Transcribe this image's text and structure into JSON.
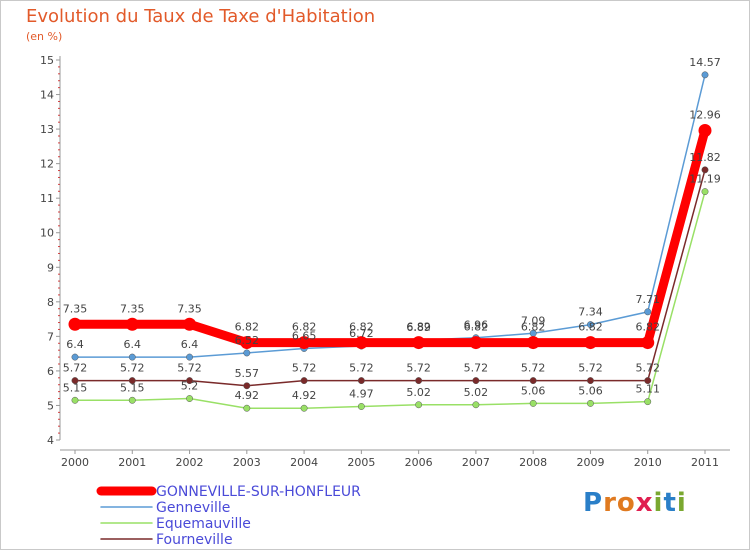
{
  "title": "Evolution du Taux de Taxe d'Habitation",
  "unit": "(en %)",
  "logo": [
    "P",
    "r",
    "o",
    "x",
    "i",
    "t",
    "i"
  ],
  "logo_colors": [
    "#2a7fc8",
    "#e07a20",
    "#e07a20",
    "#e01f50",
    "#7aa830",
    "#2a7fc8",
    "#7aa830"
  ],
  "chart_data": {
    "type": "line",
    "title": "Evolution du Taux de Taxe d'Habitation",
    "ylabel": "(en %)",
    "xlabel": "",
    "categories": [
      "2000",
      "2001",
      "2002",
      "2003",
      "2004",
      "2005",
      "2006",
      "2007",
      "2008",
      "2009",
      "2010",
      "2011"
    ],
    "ylim": [
      4,
      15
    ],
    "yticks": [
      4,
      5,
      6,
      7,
      8,
      9,
      10,
      11,
      12,
      13,
      14,
      15
    ],
    "series": [
      {
        "name": "GONNEVILLE-SUR-HONFLEUR",
        "color": "#ff0000",
        "values": [
          7.35,
          7.35,
          7.35,
          6.82,
          6.82,
          6.82,
          6.82,
          6.82,
          6.82,
          6.82,
          6.82,
          12.96
        ],
        "labels": [
          "7.35",
          "7.35",
          "7.35",
          "6.82",
          "6.82",
          "6.82",
          "6.82",
          "6.82",
          "6.82",
          "6.82",
          "6.82",
          "12.96"
        ]
      },
      {
        "name": "Genneville",
        "color": "#5b9bd5",
        "values": [
          6.4,
          6.4,
          6.4,
          6.52,
          6.65,
          6.72,
          6.89,
          6.96,
          7.09,
          7.34,
          7.71,
          14.57
        ],
        "labels": [
          "6.4",
          "6.4",
          "6.4",
          "6.52",
          "6.65",
          "6.72",
          "6.89",
          "6.96",
          "7.09",
          "7.34",
          "7.71",
          "14.57"
        ]
      },
      {
        "name": "Equemauville",
        "color": "#99e066",
        "values": [
          5.15,
          5.15,
          5.2,
          4.92,
          4.92,
          4.97,
          5.02,
          5.02,
          5.06,
          5.06,
          5.11,
          11.19
        ],
        "labels": [
          "5.15",
          "5.15",
          "5.2",
          "4.92",
          "4.92",
          "4.97",
          "5.02",
          "5.02",
          "5.06",
          "5.06",
          "5.11",
          "11.19"
        ]
      },
      {
        "name": "Fourneville",
        "color": "#7a2a2a",
        "values": [
          5.72,
          5.72,
          5.72,
          5.57,
          5.72,
          5.72,
          5.72,
          5.72,
          5.72,
          5.72,
          5.72,
          11.82
        ],
        "labels": [
          "5.72",
          "5.72",
          "5.72",
          "5.57",
          "5.72",
          "5.72",
          "5.72",
          "5.72",
          "5.72",
          "5.72",
          "5.72",
          "11.82"
        ]
      }
    ],
    "legend": [
      "GONNEVILLE-SUR-HONFLEUR",
      "Genneville",
      "Equemauville",
      "Fourneville"
    ],
    "legend_position": "bottom-left",
    "grid": false
  }
}
